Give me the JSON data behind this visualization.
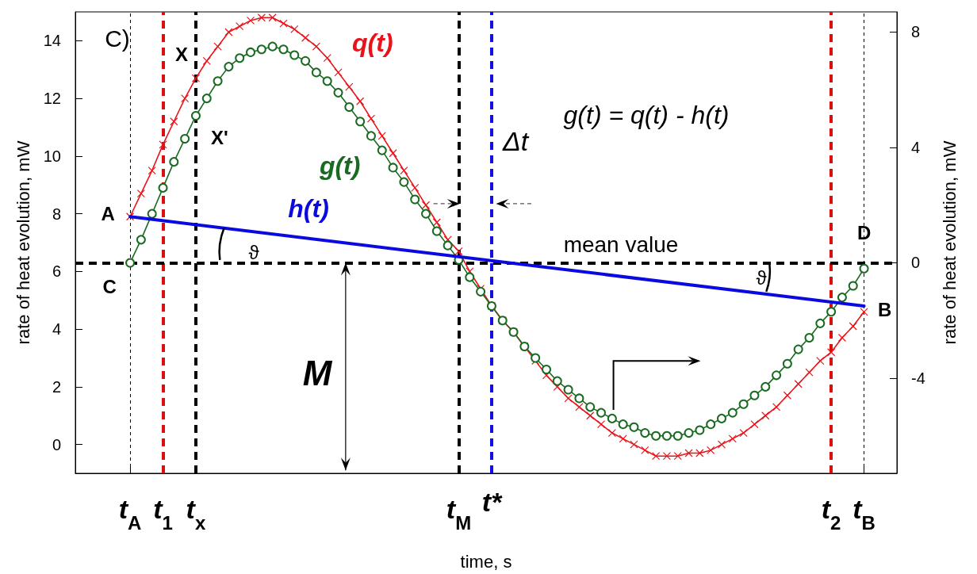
{
  "chart_data": {
    "type": "line",
    "xlabel": "time, s",
    "ylabel": "rate of heat evolution, mW",
    "y2label": "rate of heat evolution, mW",
    "categories": [
      null,
      null,
      null,
      null,
      null,
      "t$_{A}$",
      null,
      null,
      "t$_{1}$",
      null,
      null,
      "t$_{x}$",
      null,
      null,
      null,
      null,
      null,
      null,
      null,
      null,
      null,
      null,
      null,
      null,
      null,
      null,
      null,
      null,
      null,
      null,
      null,
      null,
      null,
      null,
      null,
      "t$_{M}$",
      null,
      null,
      "t*",
      null,
      null,
      null,
      null,
      null,
      null,
      null,
      null,
      null,
      null,
      null,
      null,
      null,
      null,
      null,
      null,
      null,
      null,
      null,
      null,
      null,
      null,
      null,
      null,
      null,
      null,
      null,
      null,
      null,
      null,
      "t$_{2}$",
      null,
      null,
      "t$_{B}$",
      null,
      null,
      null
    ],
    "ylim": [
      -1,
      15
    ],
    "yticks": [
      0,
      2,
      4,
      6,
      8,
      10,
      12,
      14
    ],
    "y2lim": [
      -7.3,
      8.7
    ],
    "y2ticks": [
      -4,
      0,
      4,
      8
    ],
    "legend": false,
    "grid": false,
    "series": [
      {
        "name": "q(t)",
        "color": "#e8141a",
        "marker": "cross",
        "values": [
          null,
          null,
          null,
          null,
          null,
          7.9,
          8.7,
          9.5,
          10.4,
          11.2,
          12.0,
          12.7,
          13.3,
          13.8,
          14.3,
          14.5,
          14.7,
          14.8,
          14.8,
          14.6,
          14.4,
          14.1,
          13.8,
          13.4,
          12.9,
          12.4,
          11.9,
          11.3,
          10.7,
          10.1,
          9.5,
          8.9,
          8.3,
          7.7,
          7.1,
          6.7,
          6.0,
          5.4,
          4.8,
          4.3,
          3.9,
          3.4,
          2.9,
          2.4,
          2.0,
          1.6,
          1.3,
          1.0,
          0.7,
          0.4,
          0.2,
          0.0,
          -0.2,
          -0.4,
          -0.4,
          -0.4,
          -0.3,
          -0.3,
          -0.2,
          0.0,
          0.2,
          0.4,
          0.7,
          1.0,
          1.3,
          1.7,
          2.1,
          2.5,
          2.9,
          3.2,
          3.7,
          4.1,
          4.6,
          null,
          null,
          null
        ]
      },
      {
        "name": "g(t)",
        "color": "#1a6b22",
        "marker": "circle",
        "axis": "y2",
        "values": [
          null,
          null,
          null,
          null,
          null,
          0,
          0.8,
          1.7,
          2.6,
          3.5,
          4.3,
          5.1,
          5.7,
          6.3,
          6.8,
          7.1,
          7.3,
          7.4,
          7.5,
          7.4,
          7.2,
          7.0,
          6.6,
          6.3,
          5.9,
          5.4,
          4.9,
          4.4,
          3.9,
          3.3,
          2.8,
          2.2,
          1.7,
          1.1,
          0.6,
          0.1,
          -0.5,
          -1.0,
          -1.5,
          -2.0,
          -2.4,
          -2.9,
          -3.3,
          -3.7,
          -4.1,
          -4.4,
          -4.7,
          -5.0,
          -5.2,
          -5.4,
          -5.6,
          -5.7,
          -5.9,
          -6.0,
          -6.0,
          -6.0,
          -5.9,
          -5.8,
          -5.6,
          -5.4,
          -5.2,
          -4.9,
          -4.6,
          -4.3,
          -3.9,
          -3.5,
          -3.0,
          -2.6,
          -2.1,
          -1.7,
          -1.2,
          -0.8,
          -0.2,
          null,
          null,
          null
        ]
      },
      {
        "name": "h(t)",
        "color": "#0a0ae0",
        "marker": "none",
        "x": [
          "t$_{A}$",
          "t$_{B}$"
        ],
        "values": [
          7.9,
          4.8
        ]
      }
    ],
    "ref_lines": [
      {
        "axis": "x",
        "value": "t$_{A}$",
        "color": "#000000",
        "line_style": "dotted"
      },
      {
        "axis": "x",
        "value": "t$_{1}$",
        "color": "#d81010",
        "line_style": "dashed"
      },
      {
        "axis": "x",
        "value": "t$_{x}$",
        "color": "#000000",
        "line_style": "dashed"
      },
      {
        "axis": "x",
        "value": "t$_{M}$",
        "color": "#000000",
        "line_style": "dashed"
      },
      {
        "axis": "x",
        "value": "t*",
        "color": "#1010e0",
        "line_style": "dashed"
      },
      {
        "axis": "x",
        "value": "t$_{2}$",
        "color": "#d81010",
        "line_style": "dashed"
      },
      {
        "axis": "x",
        "value": "t$_{B}$",
        "color": "#000000",
        "line_style": "dotted"
      },
      {
        "axis": "y",
        "value": 6.3,
        "label": "mean value",
        "color": "#000000",
        "line_style": "dashed"
      }
    ],
    "annotations": [
      "C)",
      "g(t) = q(t) - h(t)",
      "Δt",
      "M",
      "ϑ",
      "ϑ",
      {
        "text": "X",
        "x": "t$_{x}$",
        "y": 12.7
      },
      {
        "text": "X'",
        "x": "t$_{x}$",
        "y": 11.4
      },
      {
        "text": "A",
        "x": "t$_{A}$",
        "y": 7.9
      },
      {
        "text": "C",
        "x": "t$_{A}$",
        "y": 6.3
      },
      {
        "text": "D",
        "x": "t$_{B}$",
        "y": 6.3
      },
      {
        "text": "B",
        "x": "t$_{B}$",
        "y": 4.8
      }
    ]
  }
}
